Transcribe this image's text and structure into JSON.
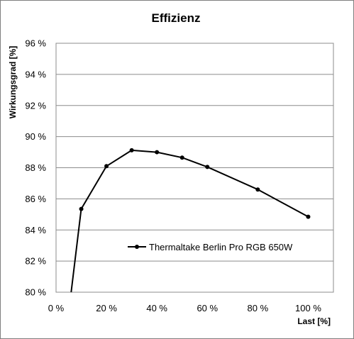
{
  "chart_data": {
    "type": "line",
    "title": "Effizienz",
    "xlabel": "Last [%]",
    "ylabel": "Wirkungsgrad [%]",
    "xlim": [
      0,
      110
    ],
    "ylim": [
      80,
      96
    ],
    "x_ticks": [
      0,
      20,
      40,
      60,
      80,
      100
    ],
    "y_ticks": [
      80,
      82,
      84,
      86,
      88,
      90,
      92,
      94,
      96
    ],
    "x_tick_labels": [
      "0 %",
      "20 %",
      "40 %",
      "60 %",
      "80 %",
      "100 %"
    ],
    "y_tick_labels": [
      "80 %",
      "82 %",
      "84 %",
      "86 %",
      "88 %",
      "90 %",
      "92 %",
      "94 %",
      "96 %"
    ],
    "grid": "horizontal",
    "legend_position": "center",
    "series": [
      {
        "name": "Thermaltake Berlin Pro RGB 650W",
        "color": "#000000",
        "points": [
          {
            "x": 6,
            "y": 80.0
          },
          {
            "x": 10,
            "y": 85.35
          },
          {
            "x": 20,
            "y": 88.1
          },
          {
            "x": 30,
            "y": 89.12
          },
          {
            "x": 40,
            "y": 89.0
          },
          {
            "x": 50,
            "y": 88.65
          },
          {
            "x": 60,
            "y": 88.05
          },
          {
            "x": 80,
            "y": 86.6
          },
          {
            "x": 100,
            "y": 84.85
          }
        ]
      }
    ]
  }
}
